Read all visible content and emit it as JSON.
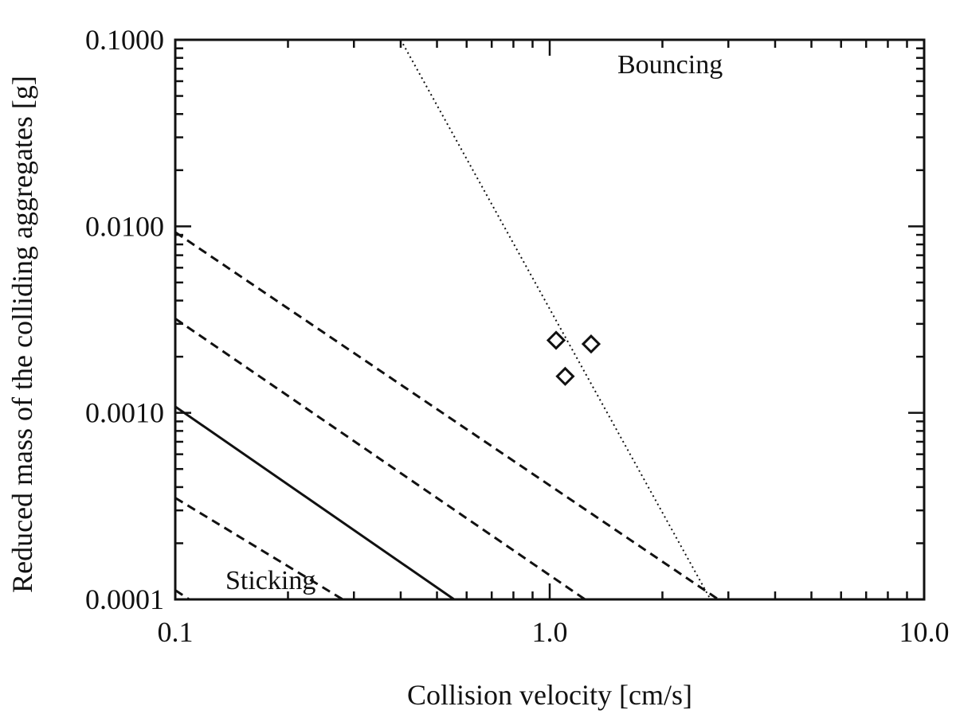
{
  "chart_data": {
    "type": "scatter",
    "title": "",
    "xlabel": "Collision velocity [cm/s]",
    "ylabel": "Reduced mass of the colliding aggregates [g]",
    "xscale": "log",
    "yscale": "log",
    "xlim": [
      0.1,
      10.0
    ],
    "ylim": [
      0.0001,
      0.1
    ],
    "xticks": [
      {
        "value": 0.1,
        "label": "0.1"
      },
      {
        "value": 1.0,
        "label": "1.0"
      },
      {
        "value": 10.0,
        "label": "10.0"
      }
    ],
    "yticks": [
      {
        "value": 0.0001,
        "label": "0.0001"
      },
      {
        "value": 0.001,
        "label": "0.0010"
      },
      {
        "value": 0.01,
        "label": "0.0100"
      },
      {
        "value": 0.1,
        "label": "0.1000"
      }
    ],
    "annotations": [
      {
        "name": "bouncing",
        "text": "Bouncing",
        "x": 1.8,
        "y": 0.075
      },
      {
        "name": "sticking",
        "text": "Sticking",
        "x": 0.18,
        "y": 0.000115
      }
    ],
    "series": [
      {
        "name": "sticking-threshold-solid",
        "style": "solid",
        "kind": "line",
        "points": [
          [
            0.1,
            0.00108
          ],
          [
            0.59,
            9.2e-05
          ]
        ]
      },
      {
        "name": "dashed-upper-1",
        "style": "dashed",
        "kind": "line",
        "points": [
          [
            0.1,
            0.0093
          ],
          [
            3.0,
            9.2e-05
          ]
        ]
      },
      {
        "name": "dashed-upper-2",
        "style": "dashed",
        "kind": "line",
        "points": [
          [
            0.1,
            0.0032
          ],
          [
            1.32,
            9.2e-05
          ]
        ]
      },
      {
        "name": "dashed-lower-1",
        "style": "dashed",
        "kind": "line",
        "points": [
          [
            0.1,
            0.00035
          ],
          [
            0.3,
            9.2e-05
          ]
        ]
      },
      {
        "name": "dashed-lower-2",
        "style": "dashed",
        "kind": "line",
        "points": [
          [
            0.1,
            0.000112
          ],
          [
            0.116,
            9.2e-05
          ]
        ]
      },
      {
        "name": "bouncing-threshold-dotted",
        "style": "dotted",
        "kind": "line",
        "points": [
          [
            0.4,
            0.1
          ],
          [
            2.75,
            9.2e-05
          ]
        ]
      },
      {
        "name": "measurements",
        "style": "diamond",
        "kind": "markers",
        "points": [
          [
            1.04,
            0.00245
          ],
          [
            1.29,
            0.00234
          ],
          [
            1.1,
            0.00157
          ]
        ]
      }
    ]
  }
}
